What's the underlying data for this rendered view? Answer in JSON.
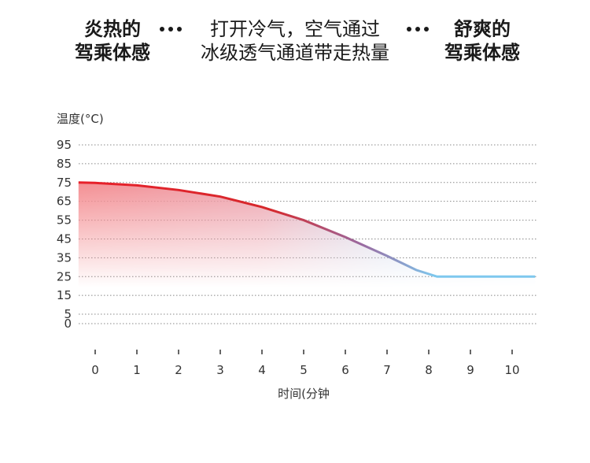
{
  "header": {
    "left": [
      "炎热的",
      "驾乘体感"
    ],
    "middle": [
      "打开冷气，空气通过",
      "冰级透气通道带走热量"
    ],
    "right": [
      "舒爽的",
      "驾乘体感"
    ]
  },
  "colors": {
    "hot": "#e8202a",
    "cool": "#7ec8ee",
    "grid": "#888888"
  },
  "chart_data": {
    "type": "line",
    "title": "",
    "ylabel": "温度(°C)",
    "xlabel": "时间(分钟",
    "xlim": [
      0,
      10
    ],
    "ylim": [
      0,
      95
    ],
    "x_ticks": [
      0,
      1,
      2,
      3,
      4,
      5,
      6,
      7,
      8,
      9,
      10
    ],
    "y_ticks": [
      0,
      5,
      15,
      25,
      35,
      45,
      55,
      65,
      75,
      85,
      95
    ],
    "grid": true,
    "series": [
      {
        "x": [
          -0.4,
          0,
          1,
          2,
          3,
          4,
          5,
          6,
          7,
          7.7,
          8.2,
          9,
          10,
          10.55
        ],
        "y": [
          75,
          74.8,
          73.5,
          71,
          67.5,
          62,
          55,
          46,
          36,
          28.5,
          25,
          25,
          25,
          25
        ]
      }
    ]
  }
}
